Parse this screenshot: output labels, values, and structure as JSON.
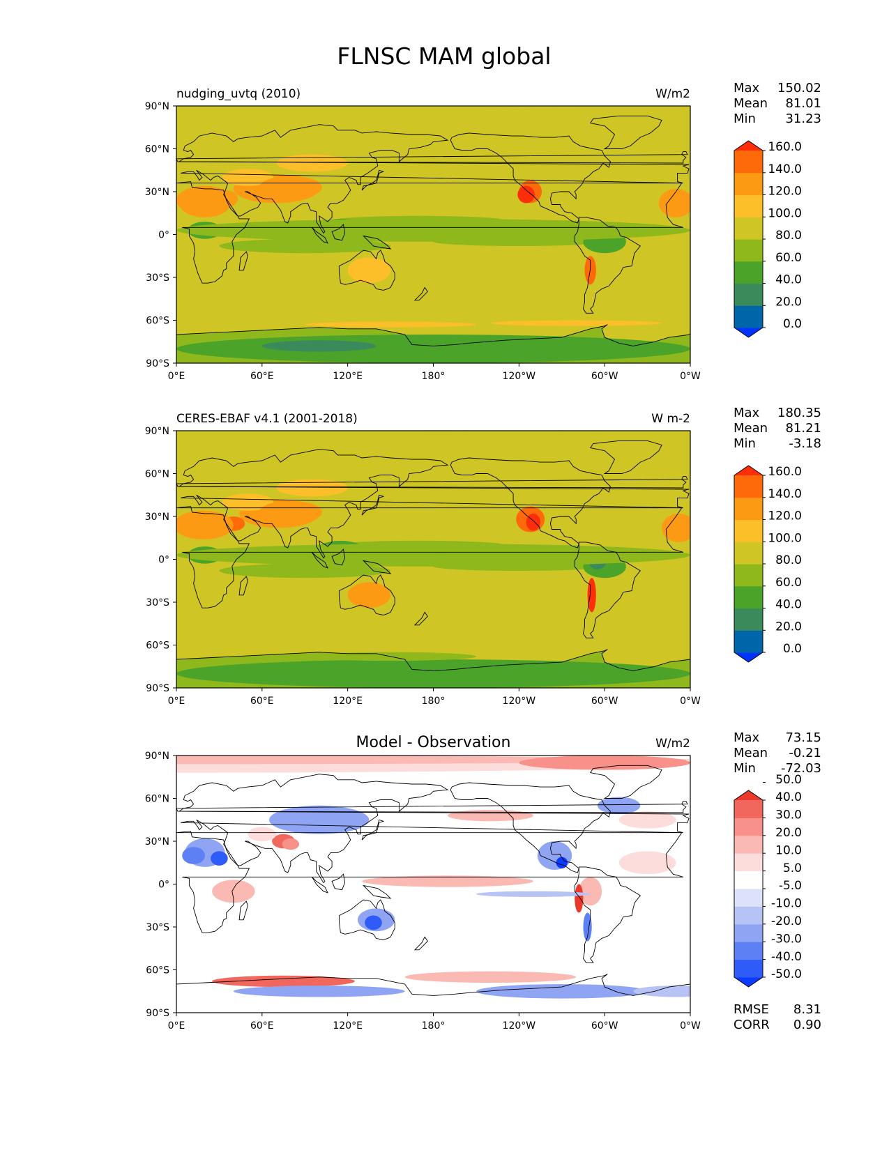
{
  "title": "FLNSC MAM global",
  "colors": {
    "levels_main": [
      "#0033ff",
      "#0066aa",
      "#3a8a5c",
      "#4ca32a",
      "#8fb81c",
      "#cfc524",
      "#fcbf2a",
      "#fd9a14",
      "#fe6a0a",
      "#fe2d0a"
    ],
    "levels_diff": [
      "#0a3cff",
      "#2f5cf8",
      "#5e80f5",
      "#8fa4f3",
      "#b7c3f5",
      "#dce2fa",
      "#ffffff",
      "#fddcdc",
      "#fbb9b4",
      "#f7918a",
      "#f2675d",
      "#ea3a2c"
    ],
    "land": "#cfc524",
    "coast": "#000000"
  },
  "chart_data": [
    {
      "type": "heatmap",
      "title": "nudging_uvtq (2010)",
      "units": "W/m2",
      "stats": [
        {
          "label": "Max",
          "value": "150.02"
        },
        {
          "label": "Mean",
          "value": "81.01"
        },
        {
          "label": "Min",
          "value": "31.23"
        }
      ],
      "colorbar": {
        "ticks": [
          "0.0",
          "20.0",
          "40.0",
          "60.0",
          "80.0",
          "100.0",
          "120.0",
          "140.0",
          "160.0"
        ],
        "levels": [
          0,
          20,
          40,
          60,
          80,
          100,
          120,
          140,
          160
        ],
        "extend": "both"
      },
      "xlim": [
        0,
        360
      ],
      "ylim": [
        -90,
        90
      ],
      "xticks": [
        "0°E",
        "60°E",
        "120°E",
        "180°",
        "120°W",
        "60°W",
        "0°W"
      ],
      "yticks": [
        "90°N",
        "60°N",
        "30°N",
        "0°",
        "30°S",
        "60°S",
        "90°S"
      ]
    },
    {
      "type": "heatmap",
      "title": "CERES-EBAF v4.1 (2001-2018)",
      "units": "W m-2",
      "stats": [
        {
          "label": "Max",
          "value": "180.35"
        },
        {
          "label": "Mean",
          "value": "81.21"
        },
        {
          "label": "Min",
          "value": "-3.18"
        }
      ],
      "colorbar": {
        "ticks": [
          "0.0",
          "20.0",
          "40.0",
          "60.0",
          "80.0",
          "100.0",
          "120.0",
          "140.0",
          "160.0"
        ],
        "levels": [
          0,
          20,
          40,
          60,
          80,
          100,
          120,
          140,
          160
        ],
        "extend": "both"
      },
      "xlim": [
        0,
        360
      ],
      "ylim": [
        -90,
        90
      ],
      "xticks": [
        "0°E",
        "60°E",
        "120°E",
        "180°",
        "120°W",
        "60°W",
        "0°W"
      ],
      "yticks": [
        "90°N",
        "60°N",
        "30°N",
        "0°",
        "30°S",
        "60°S",
        "90°S"
      ]
    },
    {
      "type": "heatmap",
      "title": "Model - Observation",
      "units": "W/m2",
      "stats": [
        {
          "label": "Max",
          "value": "73.15"
        },
        {
          "label": "Mean",
          "value": "-0.21"
        },
        {
          "label": "Min",
          "value": "-72.03"
        }
      ],
      "extra_stats": [
        {
          "label": "RMSE",
          "value": "8.31"
        },
        {
          "label": "CORR",
          "value": "0.90"
        }
      ],
      "colorbar": {
        "ticks": [
          "-50.0",
          "-40.0",
          "-30.0",
          "-20.0",
          "-10.0",
          "-5.0",
          "5.0",
          "10.0",
          "20.0",
          "30.0",
          "40.0",
          "50.0"
        ],
        "levels": [
          -50,
          -40,
          -30,
          -20,
          -10,
          -5,
          5,
          10,
          20,
          30,
          40,
          50
        ],
        "extend": "both"
      },
      "xlim": [
        0,
        360
      ],
      "ylim": [
        -90,
        90
      ],
      "xticks": [
        "0°E",
        "60°E",
        "120°E",
        "180°",
        "120°W",
        "60°W",
        "0°W"
      ],
      "yticks": [
        "90°N",
        "60°N",
        "30°N",
        "0°",
        "30°S",
        "60°S",
        "90°S"
      ]
    }
  ]
}
